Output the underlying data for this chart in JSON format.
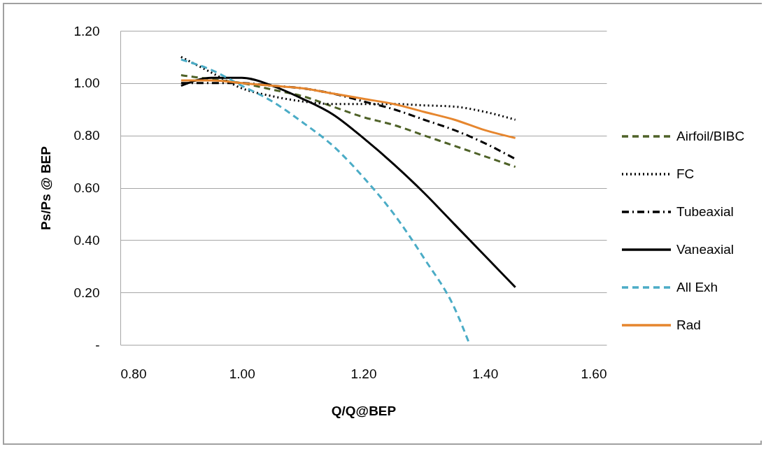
{
  "chart_data": {
    "type": "line",
    "xlabel": "Q/Q@BEP",
    "ylabel": "Ps/Ps @ BEP",
    "x": [
      0.9,
      0.95,
      1.0,
      1.05,
      1.1,
      1.15,
      1.2,
      1.25,
      1.3,
      1.35,
      1.4,
      1.45
    ],
    "series": [
      {
        "name": "Airfoil/BIBC",
        "color": "#4f6228",
        "line_style": "dashed",
        "values": [
          1.03,
          1.015,
          1.0,
          0.975,
          0.95,
          0.91,
          0.87,
          0.84,
          0.8,
          0.76,
          0.72,
          0.68
        ]
      },
      {
        "name": "FC",
        "color": "#000000",
        "line_style": "dotted",
        "values": [
          1.1,
          1.04,
          0.98,
          0.95,
          0.93,
          0.92,
          0.92,
          0.92,
          0.915,
          0.91,
          0.89,
          0.86
        ]
      },
      {
        "name": "Tubeaxial",
        "color": "#000000",
        "line_style": "dashdot",
        "values": [
          1.0,
          1.0,
          1.0,
          0.99,
          0.98,
          0.96,
          0.93,
          0.9,
          0.86,
          0.82,
          0.77,
          0.71
        ]
      },
      {
        "name": "Vaneaxial",
        "color": "#000000",
        "line_style": "solid",
        "values": [
          0.99,
          1.02,
          1.02,
          0.99,
          0.94,
          0.88,
          0.79,
          0.69,
          0.58,
          0.46,
          0.34,
          0.22
        ]
      },
      {
        "name": "All Exh",
        "color": "#4bacc6",
        "line_style": "dashed",
        "x": [
          0.9,
          0.95,
          1.0,
          1.05,
          1.1,
          1.15,
          1.2,
          1.25,
          1.3,
          1.35,
          1.375
        ],
        "values": [
          1.09,
          1.05,
          0.99,
          0.93,
          0.85,
          0.76,
          0.64,
          0.5,
          0.33,
          0.14,
          0.0
        ]
      },
      {
        "name": "Rad",
        "color": "#e6862e",
        "line_style": "solid",
        "values": [
          1.01,
          1.01,
          1.0,
          0.99,
          0.98,
          0.96,
          0.94,
          0.92,
          0.89,
          0.86,
          0.82,
          0.79
        ]
      }
    ],
    "xlim": [
      0.8,
      1.6
    ],
    "xticks": [
      {
        "value": 0.8,
        "label": "0.80"
      },
      {
        "value": 1.0,
        "label": "1.00"
      },
      {
        "value": 1.2,
        "label": "1.20"
      },
      {
        "value": 1.4,
        "label": "1.40"
      },
      {
        "value": 1.6,
        "label": "1.60"
      }
    ],
    "ylim": [
      0,
      1.2
    ],
    "yticks": [
      {
        "value": 0,
        "label": "-"
      },
      {
        "value": 0.2,
        "label": "0.20"
      },
      {
        "value": 0.4,
        "label": "0.40"
      },
      {
        "value": 0.6,
        "label": "0.60"
      },
      {
        "value": 0.8,
        "label": "0.80"
      },
      {
        "value": 1.0,
        "label": "1.00"
      },
      {
        "value": 1.2,
        "label": "1.20"
      }
    ],
    "grid": "y",
    "legend": "right",
    "marker": "none"
  }
}
